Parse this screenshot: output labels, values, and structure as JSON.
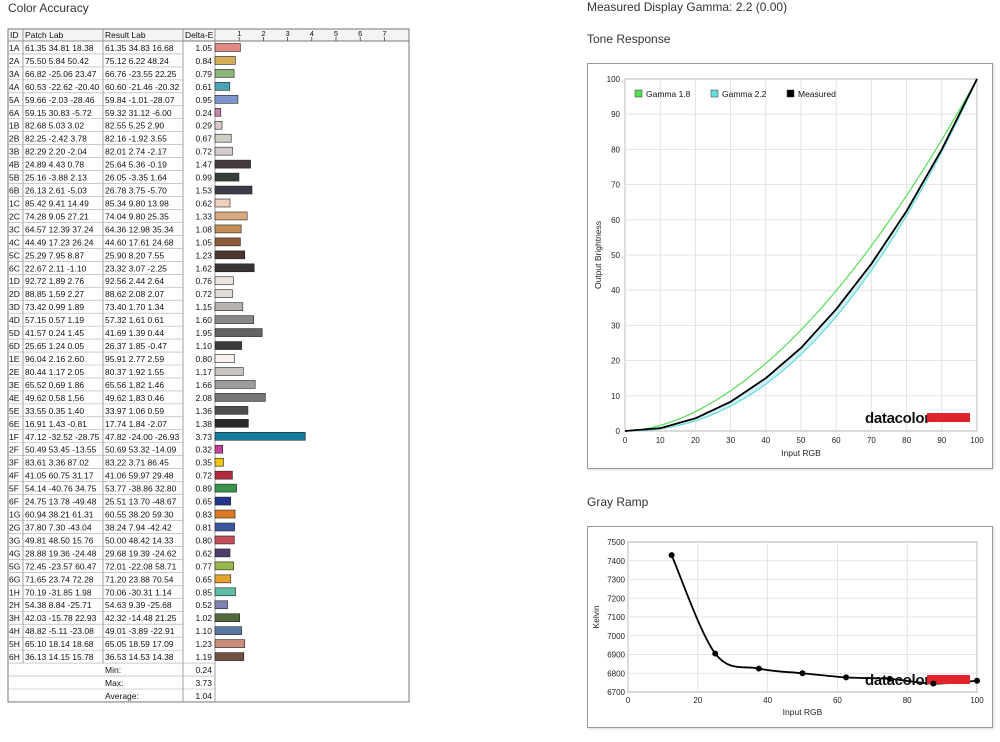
{
  "color_accuracy": {
    "title": "Color Accuracy",
    "headers": {
      "id": "ID",
      "patch": "Patch Lab",
      "result": "Result Lab",
      "delta": "Delta-E"
    },
    "scale_ticks": [
      "1",
      "2",
      "3",
      "4",
      "5",
      "6",
      "7"
    ],
    "rows": [
      {
        "id": "1A",
        "patch": "61.35 34.81 18.38",
        "result": "61.35 34.83 16.68",
        "de": "1.05",
        "color": "#e08a86"
      },
      {
        "id": "2A",
        "patch": "75.50 5.84 50.42",
        "result": "75.12 6.22 48.24",
        "de": "0.84",
        "color": "#d5ae5a"
      },
      {
        "id": "3A",
        "patch": "66.82 -25.06 23.47",
        "result": "66.76 -23.55 22.25",
        "de": "0.79",
        "color": "#8cb67a"
      },
      {
        "id": "4A",
        "patch": "60.53 -22.62 -20.40",
        "result": "60.60 -21.46 -20.32",
        "de": "0.61",
        "color": "#4da3b6"
      },
      {
        "id": "5A",
        "patch": "59.66 -2.03 -28.46",
        "result": "59.84 -1.01 -28.07",
        "de": "0.95",
        "color": "#7d95cc"
      },
      {
        "id": "6A",
        "patch": "59.15 30.83 -5.72",
        "result": "59.32 31.12 -6.00",
        "de": "0.24",
        "color": "#c882a8"
      },
      {
        "id": "1B",
        "patch": "82.68 5.03 3.02",
        "result": "82.55 5.25 2.90",
        "de": "0.29",
        "color": "#d8c8c6"
      },
      {
        "id": "2B",
        "patch": "82.25 -2.42 3.78",
        "result": "82.16 -1.92 3.55",
        "de": "0.67",
        "color": "#cccfc4"
      },
      {
        "id": "3B",
        "patch": "82.29 2.20 -2.04",
        "result": "82.01 2.74 -2.17",
        "de": "0.72",
        "color": "#d2ccd2"
      },
      {
        "id": "4B",
        "patch": "24.89 4.43 0.78",
        "result": "25.64 5.36 -0.19",
        "de": "1.47",
        "color": "#443b3d"
      },
      {
        "id": "5B",
        "patch": "25.16 -3.88 2.13",
        "result": "26.05 -3.35 1.64",
        "de": "0.99",
        "color": "#363f37"
      },
      {
        "id": "6B",
        "patch": "26.13 2.61 -5.03",
        "result": "26.78 3.75 -5.70",
        "de": "1.53",
        "color": "#3b3c47"
      },
      {
        "id": "1C",
        "patch": "85.42 9.41 14.49",
        "result": "85.34 9.80 13.98",
        "de": "0.62",
        "color": "#f1d0bd"
      },
      {
        "id": "2C",
        "patch": "74.28 9.05 27.21",
        "result": "74.04 9.80 25.35",
        "de": "1.33",
        "color": "#d9a982"
      },
      {
        "id": "3C",
        "patch": "64.57 12.39 37.24",
        "result": "64.36 12.98 35.34",
        "de": "1.08",
        "color": "#c38c55"
      },
      {
        "id": "4C",
        "patch": "44.49 17.23 26.24",
        "result": "44.60 17.61 24.68",
        "de": "1.05",
        "color": "#8e5a3a"
      },
      {
        "id": "5C",
        "patch": "25.29 7.95 8.87",
        "result": "25.90 8.20 7.55",
        "de": "1.23",
        "color": "#4a3530"
      },
      {
        "id": "6C",
        "patch": "22.67 2.11 -1.10",
        "result": "23.32 3.07 -2.25",
        "de": "1.62",
        "color": "#383336"
      },
      {
        "id": "1D",
        "patch": "92.72 1.89 2.76",
        "result": "92.56 2.44 2.64",
        "de": "0.76",
        "color": "#ece6e2"
      },
      {
        "id": "2D",
        "patch": "88.85 1.59 2.27",
        "result": "88.62 2.08 2.07",
        "de": "0.72",
        "color": "#e0dcd9"
      },
      {
        "id": "3D",
        "patch": "73.42 0.99 1.89",
        "result": "73.40 1.70 1.34",
        "de": "1.15",
        "color": "#b5b2b0"
      },
      {
        "id": "4D",
        "patch": "57.15 0.57 1.19",
        "result": "57.32 1.61 0.61",
        "de": "1.60",
        "color": "#8a8887"
      },
      {
        "id": "5D",
        "patch": "41.57 0.24 1.45",
        "result": "41.69 1.39 0.44",
        "de": "1.95",
        "color": "#636161"
      },
      {
        "id": "6D",
        "patch": "25.65 1.24 0.05",
        "result": "26.37 1.85 -0.47",
        "de": "1.10",
        "color": "#3c3a3b"
      },
      {
        "id": "1E",
        "patch": "96.04 2.16 2.60",
        "result": "95.91 2.77 2.59",
        "de": "0.80",
        "color": "#f8f1ee"
      },
      {
        "id": "2E",
        "patch": "80.44 1.17 2.05",
        "result": "80.37 1.92 1.55",
        "de": "1.17",
        "color": "#c8c5c2"
      },
      {
        "id": "3E",
        "patch": "65.52 0.69 1.86",
        "result": "65.56 1.82 1.46",
        "de": "1.66",
        "color": "#9f9c9a"
      },
      {
        "id": "4E",
        "patch": "49.62 0.58 1.56",
        "result": "49.62 1.83 0.46",
        "de": "2.08",
        "color": "#777574"
      },
      {
        "id": "5E",
        "patch": "33.55 0.35 1.40",
        "result": "33.97 1.06 0.59",
        "de": "1.36",
        "color": "#4f4d4d"
      },
      {
        "id": "6E",
        "patch": "16.91 1.43 -0.81",
        "result": "17.74 1.84 -2.07",
        "de": "1.38",
        "color": "#2a2729"
      },
      {
        "id": "1F",
        "patch": "47.12 -32.52 -28.75",
        "result": "47.82 -24.00 -26.93",
        "de": "3.73",
        "color": "#137c9c"
      },
      {
        "id": "2F",
        "patch": "50.49 53.45 -13.55",
        "result": "50.69 53.32 -14.09",
        "de": "0.32",
        "color": "#c5409a"
      },
      {
        "id": "3F",
        "patch": "83.61 3.36 87.02",
        "result": "83.22 3.71 86.45",
        "de": "0.35",
        "color": "#ecc612"
      },
      {
        "id": "4F",
        "patch": "41.05 60.75 31.17",
        "result": "41.06 59.97 29.48",
        "de": "0.72",
        "color": "#b32a3d"
      },
      {
        "id": "5F",
        "patch": "54.14 -40.76 34.75",
        "result": "53.77 -38.86 32.80",
        "de": "0.89",
        "color": "#3a9449"
      },
      {
        "id": "6F",
        "patch": "24.75 13.78 -49.48",
        "result": "25.51 13.70 -48.67",
        "de": "0.65",
        "color": "#24358c"
      },
      {
        "id": "1G",
        "patch": "60.94 38.21 61.31",
        "result": "60.55 38.20 59.30",
        "de": "0.83",
        "color": "#dd7a28"
      },
      {
        "id": "2G",
        "patch": "37.80 7.30 -43.04",
        "result": "38.24 7.94 -42.42",
        "de": "0.81",
        "color": "#3c57a0"
      },
      {
        "id": "3G",
        "patch": "49.81 48.50 15.76",
        "result": "50.00 48.42 14.33",
        "de": "0.80",
        "color": "#c44d5c"
      },
      {
        "id": "4G",
        "patch": "28.88 19.36 -24.48",
        "result": "29.68 19.39 -24.62",
        "de": "0.62",
        "color": "#503c6a"
      },
      {
        "id": "5G",
        "patch": "72.45 -23.57 60.47",
        "result": "72.01 -22.08 58.71",
        "de": "0.77",
        "color": "#9db84a"
      },
      {
        "id": "6G",
        "patch": "71.65 23.74 72.28",
        "result": "71.20 23.88 70.54",
        "de": "0.65",
        "color": "#e7a12d"
      },
      {
        "id": "1H",
        "patch": "70.19 -31.85 1.98",
        "result": "70.06 -30.31 1.14",
        "de": "0.85",
        "color": "#5fbaa6"
      },
      {
        "id": "2H",
        "patch": "54.38 8.84 -25.71",
        "result": "54.63 9.39 -25.68",
        "de": "0.52",
        "color": "#7f83b4"
      },
      {
        "id": "3H",
        "patch": "42.03 -15.78 22.93",
        "result": "42.32 -14.48 21.25",
        "de": "1.02",
        "color": "#526a3d"
      },
      {
        "id": "4H",
        "patch": "48.82 -5.11 -23.08",
        "result": "49.01 -3.89 -22.91",
        "de": "1.10",
        "color": "#5b7aa3"
      },
      {
        "id": "5H",
        "patch": "65.10 18.14 18.68",
        "result": "65.05 18.59 17.09",
        "de": "1.23",
        "color": "#c98e7b"
      },
      {
        "id": "6H",
        "patch": "36.13 14.15 15.78",
        "result": "36.53 14.53 14.38",
        "de": "1.19",
        "color": "#74503f"
      }
    ],
    "summary": [
      {
        "label": "Min:",
        "value": "0.24"
      },
      {
        "label": "Max:",
        "value": "3.73"
      },
      {
        "label": "Average:",
        "value": "1.04"
      }
    ]
  },
  "gamma": {
    "title": "Measured Display Gamma: 2.2 (0.00)"
  },
  "tone_title": "Tone Response",
  "gray_title": "Gray Ramp",
  "brand": "datacolor",
  "chart_data": [
    {
      "type": "line",
      "xlabel": "Input RGB",
      "ylabel": "Output Brightness",
      "xlim": [
        0,
        100
      ],
      "ylim": [
        0,
        100
      ],
      "xticks": [
        0,
        10,
        20,
        30,
        40,
        50,
        60,
        70,
        80,
        90,
        100
      ],
      "yticks": [
        0,
        10,
        20,
        30,
        40,
        50,
        60,
        70,
        80,
        90,
        100
      ],
      "grid": true,
      "legend": "top-left",
      "series": [
        {
          "name": "Gamma 1.8",
          "color": "#55dd55",
          "gamma": 1.8
        },
        {
          "name": "Gamma 2.2",
          "color": "#66dddd",
          "gamma": 2.2
        },
        {
          "name": "Measured",
          "color": "#000000",
          "x": [
            0,
            10,
            20,
            30,
            40,
            50,
            60,
            70,
            80,
            90,
            100
          ],
          "y": [
            0,
            0.8,
            3.6,
            8.3,
            15,
            23.6,
            34.6,
            47.5,
            62.5,
            80,
            100
          ]
        }
      ]
    },
    {
      "type": "line",
      "xlabel": "Input RGB",
      "ylabel": "Kelvin",
      "xlim": [
        0,
        100
      ],
      "ylim": [
        6700,
        7500
      ],
      "xticks": [
        0,
        20,
        40,
        60,
        80,
        100
      ],
      "yticks": [
        6700,
        6800,
        6900,
        7000,
        7100,
        7200,
        7300,
        7400,
        7500
      ],
      "grid": true,
      "series": [
        {
          "x": [
            12.5,
            25,
            37.5,
            50,
            62.5,
            75,
            87.5,
            100
          ],
          "y": [
            7430,
            6905,
            6825,
            6800,
            6778,
            6770,
            6745,
            6760
          ]
        }
      ]
    }
  ]
}
